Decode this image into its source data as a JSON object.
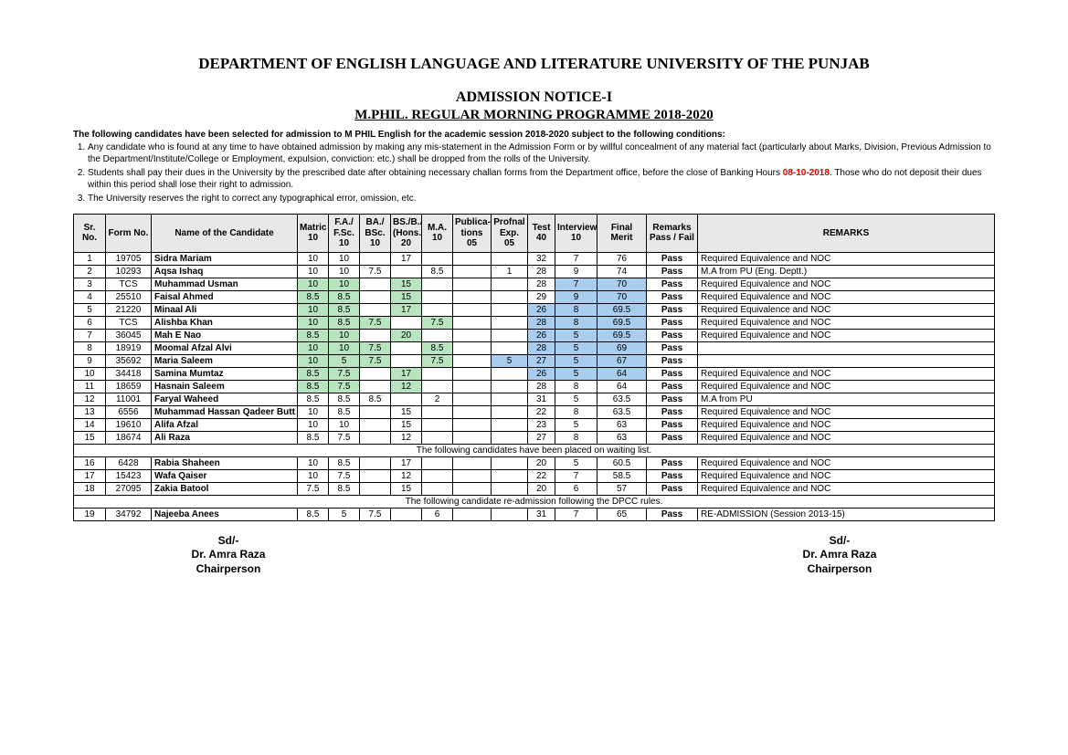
{
  "header": {
    "dept": "DEPARTMENT OF ENGLISH LANGUAGE AND LITERATURE UNIVERSITY OF THE PUNJAB",
    "notice": "ADMISSION NOTICE-I",
    "programme": "M.PHIL. REGULAR MORNING PROGRAMME 2018-2020"
  },
  "conditions": {
    "intro": "The following candidates have been selected for admission to M PHIL English for the academic session 2018-2020 subject to the following conditions:",
    "item1": "Any candidate who is found at any time to have obtained admission by making any mis-statement in the Admission Form or by willful concealment of any material fact (particularly about Marks, Division, Previous Admission to the Department/Institute/College or Employment, expulsion, conviction: etc.) shall be dropped from the rolls of the University.",
    "item2a": "Students shall pay their dues in the University by the prescribed date after obtaining necessary challan forms from the Department office, before the close of Banking Hours ",
    "item2date": "08-10-2018",
    "item2b": ". Those who do not deposit their dues within this period shall lose their right to admission.",
    "item3": "The University reserves the right to correct any typographical error, omission, etc."
  },
  "columns": {
    "sr": "Sr. No.",
    "form": "Form No.",
    "name": "Name of the Candidate",
    "matric": "Matric 10",
    "fa": "F.A./ F.Sc. 10",
    "ba": "BA./ BSc. 10",
    "bs": "BS./B.A (Hons.) 20",
    "ma": "M.A. 10",
    "pub": "Publica- tions 05",
    "exp": "Profnal Exp. 05",
    "test": "Test 40",
    "int": "Interview 10",
    "merit": "Final Merit",
    "pf": "Remarks Pass / Fail",
    "rem": "REMARKS"
  },
  "section1": "The following candidates have been placed on waiting list.",
  "section2": "The following candidate re-admission following the DPCC rules.",
  "rows": [
    {
      "sr": "1",
      "form": "19705",
      "name": "Sidra Mariam",
      "matric": "10",
      "fa": "10",
      "ba": "",
      "bs": "17",
      "ma": "",
      "pub": "",
      "exp": "",
      "test": "32",
      "int": "7",
      "merit": "76",
      "pf": "Pass",
      "rem": "Required Equivalence and NOC"
    },
    {
      "sr": "2",
      "form": "10293",
      "name": "Aqsa Ishaq",
      "matric": "10",
      "fa": "10",
      "ba": "7.5",
      "bs": "",
      "ma": "8.5",
      "pub": "",
      "exp": "1",
      "test": "28",
      "int": "9",
      "merit": "74",
      "pf": "Pass",
      "rem": "M.A from PU (Eng. Deptt.)"
    },
    {
      "sr": "3",
      "form": "TCS",
      "name": "Muhammad Usman",
      "matric": "10",
      "fa": "10",
      "ba": "",
      "bs": "15",
      "ma": "",
      "pub": "",
      "exp": "",
      "test": "28",
      "int": "7",
      "merit": "70",
      "pf": "Pass",
      "rem": "Required Equivalence and NOC",
      "hl": {
        "matric": "g",
        "fa": "g",
        "bs": "g",
        "int": "b",
        "merit": "b"
      }
    },
    {
      "sr": "4",
      "form": "25510",
      "name": "Faisal Ahmed",
      "matric": "8.5",
      "fa": "8.5",
      "ba": "",
      "bs": "15",
      "ma": "",
      "pub": "",
      "exp": "",
      "test": "29",
      "int": "9",
      "merit": "70",
      "pf": "Pass",
      "rem": "Required Equivalence and NOC",
      "hl": {
        "matric": "g",
        "fa": "g",
        "bs": "g",
        "int": "b",
        "merit": "b"
      }
    },
    {
      "sr": "5",
      "form": "21220",
      "name": "Minaal Ali",
      "matric": "10",
      "fa": "8.5",
      "ba": "",
      "bs": "17",
      "ma": "",
      "pub": "",
      "exp": "",
      "test": "26",
      "int": "8",
      "merit": "69.5",
      "pf": "Pass",
      "rem": "Required Equivalence and NOC",
      "hl": {
        "matric": "g",
        "fa": "g",
        "bs": "g",
        "test": "b",
        "int": "b",
        "merit": "b"
      }
    },
    {
      "sr": "6",
      "form": "TCS",
      "name": "Alishba Khan",
      "matric": "10",
      "fa": "8.5",
      "ba": "7.5",
      "bs": "",
      "ma": "7.5",
      "pub": "",
      "exp": "",
      "test": "28",
      "int": "8",
      "merit": "69.5",
      "pf": "Pass",
      "rem": "Required Equivalence and NOC",
      "hl": {
        "matric": "g",
        "fa": "g",
        "ba": "g",
        "ma": "g",
        "test": "b",
        "int": "b",
        "merit": "b"
      }
    },
    {
      "sr": "7",
      "form": "36045",
      "name": "Mah E Nao",
      "matric": "8.5",
      "fa": "10",
      "ba": "",
      "bs": "20",
      "ma": "",
      "pub": "",
      "exp": "",
      "test": "26",
      "int": "5",
      "merit": "69.5",
      "pf": "Pass",
      "rem": "Required Equivalence and NOC",
      "hl": {
        "matric": "g",
        "fa": "g",
        "bs": "g",
        "test": "b",
        "int": "b",
        "merit": "b"
      }
    },
    {
      "sr": "8",
      "form": "18919",
      "name": "Moomal Afzal Alvi",
      "matric": "10",
      "fa": "10",
      "ba": "7.5",
      "bs": "",
      "ma": "8.5",
      "pub": "",
      "exp": "",
      "test": "28",
      "int": "5",
      "merit": "69",
      "pf": "Pass",
      "rem": "",
      "hl": {
        "matric": "g",
        "fa": "g",
        "ba": "g",
        "ma": "g",
        "test": "b",
        "int": "b",
        "merit": "b"
      }
    },
    {
      "sr": "9",
      "form": "35692",
      "name": "Maria Saleem",
      "matric": "10",
      "fa": "5",
      "ba": "7.5",
      "bs": "",
      "ma": "7.5",
      "pub": "",
      "exp": "5",
      "test": "27",
      "int": "5",
      "merit": "67",
      "pf": "Pass",
      "rem": "",
      "hl": {
        "matric": "g",
        "fa": "g",
        "ba": "g",
        "ma": "g",
        "exp": "b",
        "test": "b",
        "int": "b",
        "merit": "b"
      }
    },
    {
      "sr": "10",
      "form": "34418",
      "name": "Samina Mumtaz",
      "matric": "8.5",
      "fa": "7.5",
      "ba": "",
      "bs": "17",
      "ma": "",
      "pub": "",
      "exp": "",
      "test": "26",
      "int": "5",
      "merit": "64",
      "pf": "Pass",
      "rem": "Required Equivalence and NOC",
      "hl": {
        "matric": "g",
        "fa": "g",
        "bs": "g",
        "test": "b",
        "int": "b",
        "merit": "b"
      }
    },
    {
      "sr": "11",
      "form": "18659",
      "name": "Hasnain Saleem",
      "matric": "8.5",
      "fa": "7.5",
      "ba": "",
      "bs": "12",
      "ma": "",
      "pub": "",
      "exp": "",
      "test": "28",
      "int": "8",
      "merit": "64",
      "pf": "Pass",
      "rem": "Required Equivalence and NOC",
      "hl": {
        "matric": "g",
        "fa": "g",
        "bs": "g"
      }
    },
    {
      "sr": "12",
      "form": "11001",
      "name": "Faryal Waheed",
      "matric": "8.5",
      "fa": "8.5",
      "ba": "8.5",
      "bs": "",
      "ma": "2",
      "pub": "",
      "exp": "",
      "test": "31",
      "int": "5",
      "merit": "63.5",
      "pf": "Pass",
      "rem": "M.A from PU"
    },
    {
      "sr": "13",
      "form": "6556",
      "name": "Muhammad Hassan Qadeer Butt",
      "matric": "10",
      "fa": "8.5",
      "ba": "",
      "bs": "15",
      "ma": "",
      "pub": "",
      "exp": "",
      "test": "22",
      "int": "8",
      "merit": "63.5",
      "pf": "Pass",
      "rem": "Required Equivalence and NOC"
    },
    {
      "sr": "14",
      "form": "19610",
      "name": "Alifa Afzal",
      "matric": "10",
      "fa": "10",
      "ba": "",
      "bs": "15",
      "ma": "",
      "pub": "",
      "exp": "",
      "test": "23",
      "int": "5",
      "merit": "63",
      "pf": "Pass",
      "rem": "Required Equivalence and NOC"
    },
    {
      "sr": "15",
      "form": "18674",
      "name": "Ali Raza",
      "matric": "8.5",
      "fa": "7.5",
      "ba": "",
      "bs": "12",
      "ma": "",
      "pub": "",
      "exp": "",
      "test": "27",
      "int": "8",
      "merit": "63",
      "pf": "Pass",
      "rem": "Required Equivalence and NOC"
    }
  ],
  "waiting": [
    {
      "sr": "16",
      "form": "6428",
      "name": "Rabia Shaheen",
      "matric": "10",
      "fa": "8.5",
      "ba": "",
      "bs": "17",
      "ma": "",
      "pub": "",
      "exp": "",
      "test": "20",
      "int": "5",
      "merit": "60.5",
      "pf": "Pass",
      "rem": "Required Equivalence and NOC"
    },
    {
      "sr": "17",
      "form": "15423",
      "name": "Wafa Qaiser",
      "matric": "10",
      "fa": "7.5",
      "ba": "",
      "bs": "12",
      "ma": "",
      "pub": "",
      "exp": "",
      "test": "22",
      "int": "7",
      "merit": "58.5",
      "pf": "Pass",
      "rem": "Required Equivalence and NOC"
    },
    {
      "sr": "18",
      "form": "27095",
      "name": "Zakia Batool",
      "matric": "7.5",
      "fa": "8.5",
      "ba": "",
      "bs": "15",
      "ma": "",
      "pub": "",
      "exp": "",
      "test": "20",
      "int": "6",
      "merit": "57",
      "pf": "Pass",
      "rem": "Required Equivalence and NOC"
    }
  ],
  "readmit": [
    {
      "sr": "19",
      "form": "34792",
      "name": "Najeeba Anees",
      "matric": "8.5",
      "fa": "5",
      "ba": "7.5",
      "bs": "",
      "ma": "6",
      "pub": "",
      "exp": "",
      "test": "31",
      "int": "7",
      "merit": "65",
      "pf": "Pass",
      "rem": "RE-ADMISSION (Session 2013-15)"
    }
  ],
  "sig": {
    "sd": "Sd/-",
    "name": "Dr. Amra Raza",
    "role": "Chairperson"
  }
}
